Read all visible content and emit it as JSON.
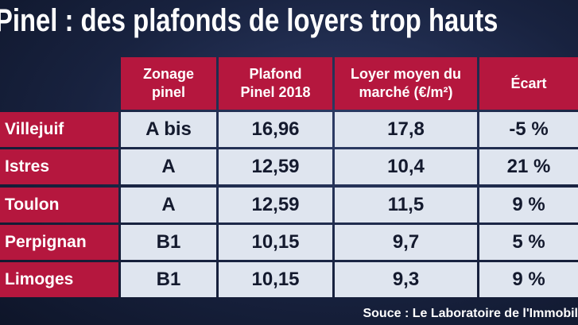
{
  "title": "Pinel : des plafonds de loyers trop hauts",
  "table": {
    "header": [
      [
        "Zonage",
        "pinel"
      ],
      [
        "Plafond",
        "Pinel 2018"
      ],
      [
        "Loyer moyen du",
        "marché (€/m²)"
      ],
      [
        "Écart"
      ]
    ],
    "rows": [
      [
        "Villejuif",
        "A bis",
        "16,96",
        "17,8",
        "-5 %"
      ],
      [
        "Istres",
        "A",
        "12,59",
        "10,4",
        "21 %"
      ],
      [
        "Toulon",
        "A",
        "12,59",
        "11,5",
        "9 %"
      ],
      [
        "Perpignan",
        "B1",
        "10,15",
        "9,7",
        "5 %"
      ],
      [
        "Limoges",
        "B1",
        "10,15",
        "9,3",
        "9 %"
      ]
    ]
  },
  "source": "Souce : Le Laboratoire de l'Immobil"
}
